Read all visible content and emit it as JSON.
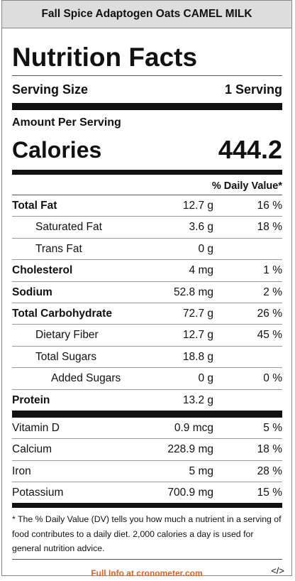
{
  "header": {
    "title": "Fall Spice Adaptogen Oats CAMEL MILK"
  },
  "label": {
    "title": "Nutrition Facts",
    "serving_label": "Serving Size",
    "serving_value": "1 Serving",
    "amount_per_serving": "Amount Per Serving",
    "calories_label": "Calories",
    "calories": 444.2,
    "dv_header": "% Daily Value*",
    "rows": [
      {
        "name": "Total Fat",
        "amount": "12.7 g",
        "dv": "16 %"
      },
      {
        "name": "Saturated Fat",
        "amount": "3.6 g",
        "dv": "18 %"
      },
      {
        "name": "Trans Fat",
        "amount": "0 g"
      },
      {
        "name": "Cholesterol",
        "amount": "4 mg",
        "dv": "1 %"
      },
      {
        "name": "Sodium",
        "amount": "52.8 mg",
        "dv": "2 %"
      },
      {
        "name": "Total Carbohydrate",
        "amount": "72.7 g",
        "dv": "26 %"
      },
      {
        "name": "Dietary Fiber",
        "amount": "12.7 g",
        "dv": "45 %"
      },
      {
        "name": "Total Sugars",
        "amount": "18.8 g"
      },
      {
        "name": "Added Sugars",
        "amount": "0 g",
        "dv": "0 %"
      },
      {
        "name": "Protein",
        "amount": "13.2 g"
      }
    ],
    "micros": [
      {
        "name": "Vitamin D",
        "amount": "0.9 mcg",
        "dv": "5 %"
      },
      {
        "name": "Calcium",
        "amount": "228.9 mg",
        "dv": "18 %"
      },
      {
        "name": "Iron",
        "amount": "5 mg",
        "dv": "28 %"
      },
      {
        "name": "Potassium",
        "amount": "700.9 mg",
        "dv": "15 %"
      }
    ],
    "footnote": "* The % Daily Value (DV) tells you how much a nutrient in a serving of food contributes to a daily diet. 2,000 calories a day is used for general nutrition advice."
  },
  "footer": {
    "link": "Full Info at cronometer.com",
    "embed": "</>"
  }
}
